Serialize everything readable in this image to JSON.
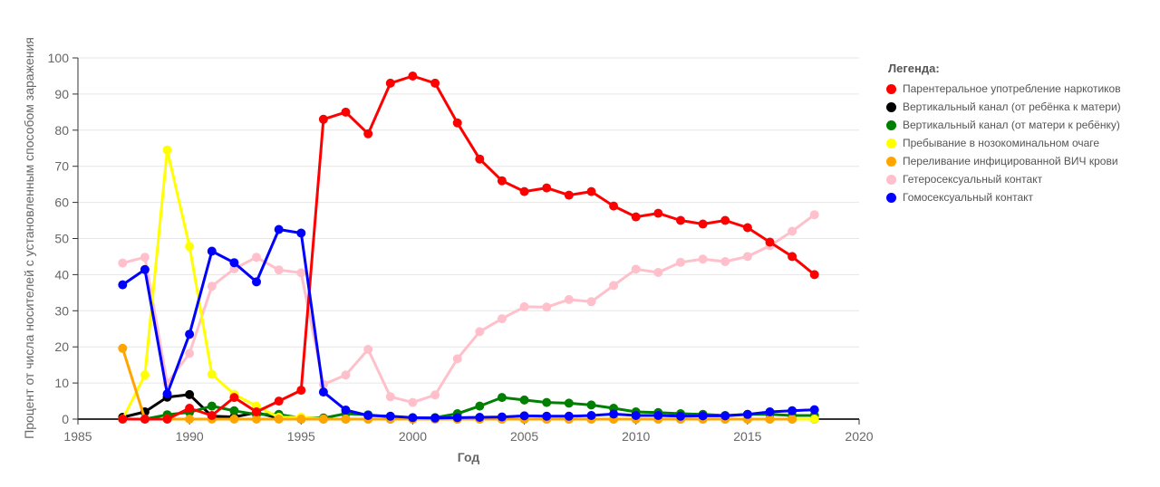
{
  "chart_data": {
    "type": "line",
    "xlabel": "Год",
    "ylabel": "Процент от числа носителей с установленным способом заражения",
    "xlim": [
      1985,
      2020
    ],
    "ylim": [
      0,
      100
    ],
    "xticks": [
      "1985",
      "1990",
      "1995",
      "2000",
      "2005",
      "2010",
      "2015",
      "2020"
    ],
    "yticks": [
      "0",
      "10",
      "20",
      "30",
      "40",
      "50",
      "60",
      "70",
      "80",
      "90",
      "100"
    ],
    "grid": "horizontal",
    "legend": {
      "title": "Легенда:",
      "position": "right"
    },
    "x": [
      1987,
      1988,
      1989,
      1990,
      1991,
      1992,
      1993,
      1994,
      1995,
      1996,
      1997,
      1998,
      1999,
      2000,
      2001,
      2002,
      2003,
      2004,
      2005,
      2006,
      2007,
      2008,
      2009,
      2010,
      2011,
      2012,
      2013,
      2014,
      2015,
      2016,
      2017,
      2018
    ],
    "series": [
      {
        "name": "Гетеросексуальный контакт",
        "color": "#ffc0cb",
        "values": [
          43.2,
          44.8,
          10,
          18.2,
          36.8,
          41.6,
          44.8,
          41.3,
          40.5,
          9.6,
          12.2,
          19.3,
          6.2,
          4.6,
          6.7,
          16.7,
          24.2,
          27.8,
          31.1,
          31.0,
          33.1,
          32.5,
          37.0,
          41.5,
          40.6,
          43.4,
          44.3,
          43.6,
          45.0,
          48.0,
          52.0,
          56.6
        ]
      },
      {
        "name": "Вертикальный канал (от ребёнка к матери)",
        "color": "#000000",
        "values": [
          0.5,
          2,
          6.1,
          6.8,
          0.8,
          0.6,
          1.8,
          0.3,
          0,
          0,
          0,
          0,
          0,
          0,
          0,
          0,
          0,
          0,
          0,
          0,
          0,
          0,
          0,
          0,
          0,
          0,
          0,
          0,
          0,
          0,
          0,
          0
        ]
      },
      {
        "name": "Вертикальный канал (от матери к ребёнку)",
        "color": "#008000",
        "values": [
          0,
          0,
          1.2,
          1.9,
          3.6,
          2.3,
          1.3,
          1.3,
          0.3,
          0.3,
          1.5,
          1.2,
          0.6,
          0.2,
          0.4,
          1.5,
          3.6,
          6.0,
          5.3,
          4.6,
          4.4,
          3.9,
          3.0,
          2.0,
          1.8,
          1.5,
          1.3,
          1.0,
          1.3,
          1.3,
          1.0,
          1.0
        ]
      },
      {
        "name": "Пребывание в нозокоминальном очаге",
        "color": "#ffff00",
        "values": [
          0,
          12.2,
          74.5,
          47.8,
          12.4,
          6.9,
          3.6,
          0.5,
          0.5,
          0,
          0,
          0,
          0,
          0,
          0,
          0,
          0,
          0,
          0,
          0,
          0,
          0,
          0,
          0,
          0,
          0,
          0,
          0,
          0,
          0,
          0,
          0
        ]
      },
      {
        "name": "Переливание инфицированной ВИЧ крови",
        "color": "#ffa500",
        "values": [
          19.6,
          0,
          0,
          0,
          0,
          0,
          0,
          0,
          0,
          0,
          0,
          0,
          0,
          0,
          0,
          0,
          0,
          0,
          0,
          0,
          0,
          0,
          0,
          0,
          0,
          0,
          0,
          0,
          0,
          0,
          0,
          null
        ]
      },
      {
        "name": "Парентеральное употребление наркотиков",
        "color": "#ff0000",
        "values": [
          0,
          0,
          0,
          3,
          1,
          6,
          2,
          5,
          8,
          83,
          85,
          79,
          93,
          95,
          93,
          82,
          72,
          66,
          63,
          64,
          62,
          63,
          59,
          56,
          57,
          55,
          54,
          55,
          53,
          49,
          45,
          40
        ]
      },
      {
        "name": "Гомосексуальный контакт",
        "color": "#0000ff",
        "values": [
          37.2,
          41.4,
          7,
          23.5,
          46.5,
          43.3,
          38,
          52.5,
          51.5,
          7.5,
          2.5,
          1,
          0.8,
          0.4,
          0.3,
          0.4,
          0.5,
          0.6,
          0.9,
          0.8,
          0.8,
          1,
          1.4,
          1,
          1,
          0.8,
          0.9,
          0.9,
          1.3,
          2,
          2.3,
          2.6
        ]
      }
    ],
    "legend_order": [
      "Парентеральное употребление наркотиков",
      "Вертикальный канал (от ребёнка к матери)",
      "Вертикальный канал (от матери к ребёнку)",
      "Пребывание в нозокоминальном очаге",
      "Переливание инфицированной ВИЧ крови",
      "Гетеросексуальный контакт",
      "Гомосексуальный контакт"
    ]
  }
}
